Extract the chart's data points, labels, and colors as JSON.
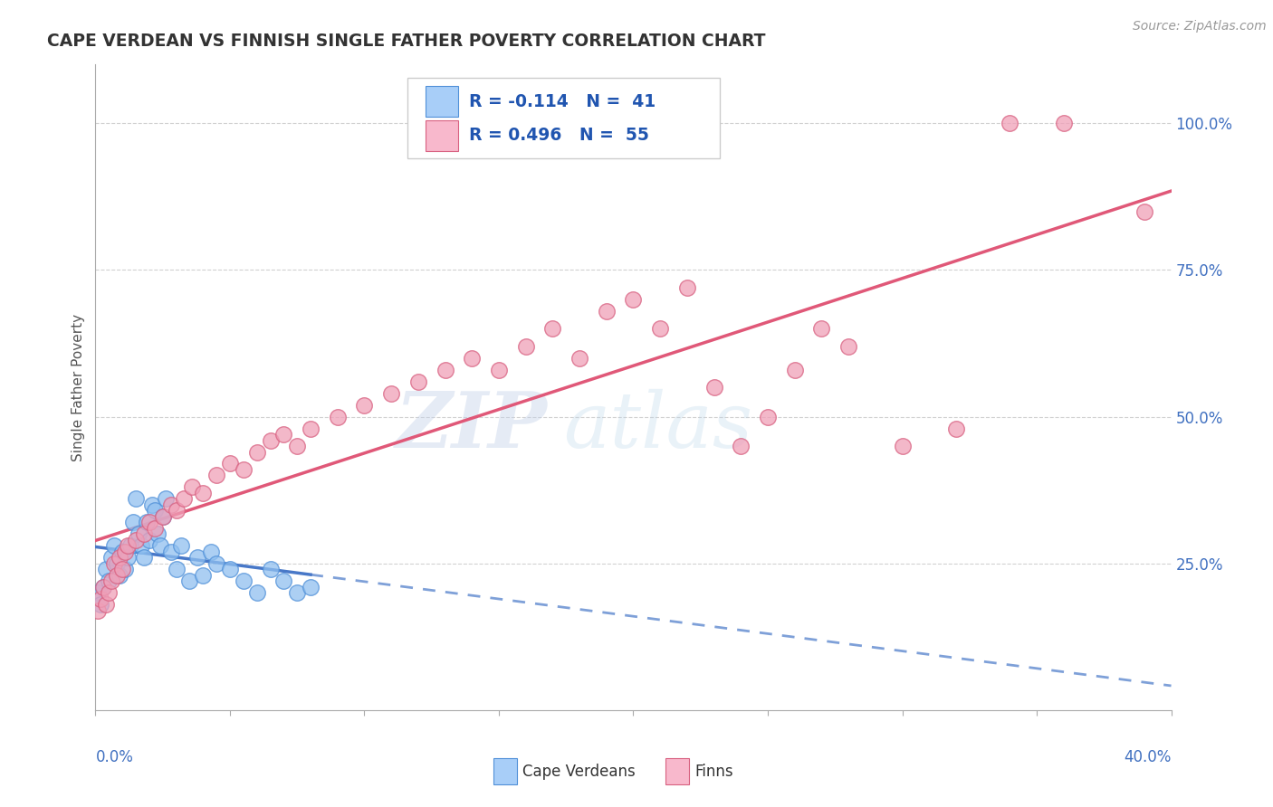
{
  "title": "CAPE VERDEAN VS FINNISH SINGLE FATHER POVERTY CORRELATION CHART",
  "source": "Source: ZipAtlas.com",
  "ylabel": "Single Father Poverty",
  "watermark_zip": "ZIP",
  "watermark_atlas": "atlas",
  "right_yticks": [
    "100.0%",
    "75.0%",
    "50.0%",
    "25.0%"
  ],
  "right_ytick_vals": [
    1.0,
    0.75,
    0.5,
    0.25
  ],
  "cv_color": "#90c0f0",
  "cv_edge": "#5090d8",
  "cv_line_color": "#4878c8",
  "fi_color": "#f0a0b8",
  "fi_edge": "#d86080",
  "fi_line_color": "#e05878",
  "legend_cv_box": "#a8cef8",
  "legend_fi_box": "#f8b8cc",
  "legend_text_r_color": "#000000",
  "legend_text_n_color": "#3060c0",
  "xlim": [
    0.0,
    0.4
  ],
  "ylim": [
    0.0,
    1.1
  ],
  "background_color": "#ffffff",
  "grid_color": "#cccccc",
  "title_color": "#333333",
  "title_fontsize": 13.5,
  "cv_R": -0.114,
  "cv_N": 41,
  "fi_R": 0.496,
  "fi_N": 55,
  "cv_x": [
    0.001,
    0.002,
    0.003,
    0.004,
    0.005,
    0.006,
    0.007,
    0.008,
    0.009,
    0.01,
    0.011,
    0.012,
    0.013,
    0.014,
    0.015,
    0.016,
    0.017,
    0.018,
    0.019,
    0.02,
    0.021,
    0.022,
    0.023,
    0.024,
    0.025,
    0.026,
    0.028,
    0.03,
    0.032,
    0.035,
    0.038,
    0.04,
    0.043,
    0.045,
    0.05,
    0.055,
    0.06,
    0.065,
    0.07,
    0.075,
    0.08
  ],
  "cv_y": [
    0.2,
    0.18,
    0.21,
    0.24,
    0.22,
    0.26,
    0.28,
    0.25,
    0.23,
    0.27,
    0.24,
    0.26,
    0.28,
    0.32,
    0.36,
    0.3,
    0.28,
    0.26,
    0.32,
    0.29,
    0.35,
    0.34,
    0.3,
    0.28,
    0.33,
    0.36,
    0.27,
    0.24,
    0.28,
    0.22,
    0.26,
    0.23,
    0.27,
    0.25,
    0.24,
    0.22,
    0.2,
    0.24,
    0.22,
    0.2,
    0.21
  ],
  "fi_x": [
    0.001,
    0.002,
    0.003,
    0.004,
    0.005,
    0.006,
    0.007,
    0.008,
    0.009,
    0.01,
    0.011,
    0.012,
    0.015,
    0.018,
    0.02,
    0.022,
    0.025,
    0.028,
    0.03,
    0.033,
    0.036,
    0.04,
    0.045,
    0.05,
    0.055,
    0.06,
    0.065,
    0.07,
    0.075,
    0.08,
    0.09,
    0.1,
    0.11,
    0.12,
    0.13,
    0.14,
    0.15,
    0.16,
    0.17,
    0.18,
    0.19,
    0.2,
    0.21,
    0.22,
    0.23,
    0.24,
    0.25,
    0.26,
    0.27,
    0.28,
    0.3,
    0.32,
    0.34,
    0.36,
    0.39
  ],
  "fi_y": [
    0.17,
    0.19,
    0.21,
    0.18,
    0.2,
    0.22,
    0.25,
    0.23,
    0.26,
    0.24,
    0.27,
    0.28,
    0.29,
    0.3,
    0.32,
    0.31,
    0.33,
    0.35,
    0.34,
    0.36,
    0.38,
    0.37,
    0.4,
    0.42,
    0.41,
    0.44,
    0.46,
    0.47,
    0.45,
    0.48,
    0.5,
    0.52,
    0.54,
    0.56,
    0.58,
    0.6,
    0.58,
    0.62,
    0.65,
    0.6,
    0.68,
    0.7,
    0.65,
    0.72,
    0.55,
    0.45,
    0.5,
    0.58,
    0.65,
    0.62,
    0.45,
    0.48,
    1.0,
    1.0,
    0.85
  ]
}
